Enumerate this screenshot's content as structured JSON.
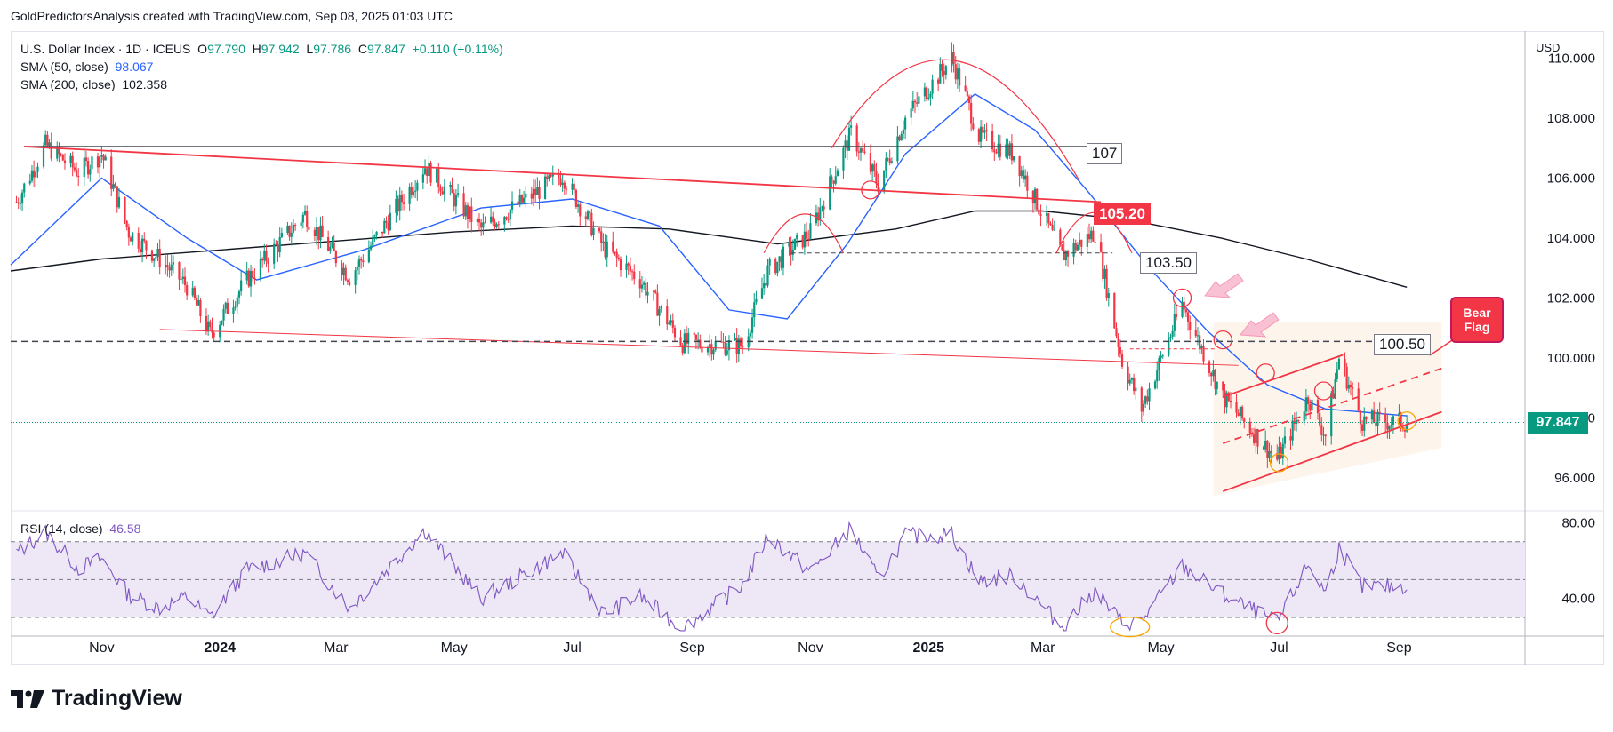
{
  "header": {
    "attribution": "GoldPredictorsAnalysis created with TradingView.com, Sep 08, 2025 01:03 UTC"
  },
  "legend": {
    "symbol": "U.S. Dollar Index · 1D · ICEUS",
    "open_label": "O",
    "open": "97.790",
    "high_label": "H",
    "high": "97.942",
    "low_label": "L",
    "low": "97.786",
    "close_label": "C",
    "close": "97.847",
    "change": "+0.110 (+0.11%)",
    "sma50_label": "SMA (50, close)",
    "sma50_value": "98.067",
    "sma200_label": "SMA (200, close)",
    "sma200_value": "102.358"
  },
  "rsi_legend": {
    "label": "RSI (14, close)",
    "value": "46.58"
  },
  "currency": "USD",
  "logo_text": "TradingView",
  "annotations": {
    "level_107": "107",
    "level_105": "105.20",
    "level_103": "103.50",
    "level_100": "100.50",
    "bear_flag_line1": "Bear",
    "bear_flag_line2": "Flag"
  },
  "colors": {
    "up": "#089981",
    "down": "#f23645",
    "sma50": "#2962ff",
    "sma200": "#131722",
    "rsi": "#7e57c2",
    "rsi_band": "#ede7f6",
    "annotation": "#f23645"
  },
  "chart_data": {
    "type": "candlestick",
    "title": "U.S. Dollar Index · 1D · ICEUS",
    "price_axis": {
      "ticks": [
        "96.000",
        "98.000",
        "100.000",
        "102.000",
        "104.000",
        "106.000",
        "108.000",
        "110.000"
      ],
      "range": [
        94.9,
        110.9
      ],
      "current_price": "97.847"
    },
    "rsi_axis": {
      "ticks": [
        "40.00",
        "80.00"
      ],
      "range": [
        22,
        84
      ],
      "band": [
        30,
        70
      ]
    },
    "time_axis": {
      "range": [
        "2023-09-15",
        "2025-11-05"
      ],
      "labels": [
        {
          "label": "Nov",
          "date": "2023-11-01"
        },
        {
          "label": "2024",
          "date": "2024-01-01"
        },
        {
          "label": "Mar",
          "date": "2024-03-01"
        },
        {
          "label": "May",
          "date": "2024-05-01"
        },
        {
          "label": "Jul",
          "date": "2024-07-01"
        },
        {
          "label": "Sep",
          "date": "2024-09-01"
        },
        {
          "label": "Nov",
          "date": "2024-11-01"
        },
        {
          "label": "2025",
          "date": "2025-01-01"
        },
        {
          "label": "Mar",
          "date": "2025-03-01"
        },
        {
          "label": "May",
          "date": "2025-05-01"
        },
        {
          "label": "Jul",
          "date": "2025-07-01"
        },
        {
          "label": "Sep",
          "date": "2025-09-01"
        }
      ]
    },
    "close_path": [
      [
        "2023-09-18",
        105.2
      ],
      [
        "2023-10-03",
        107.1
      ],
      [
        "2023-10-20",
        106.2
      ],
      [
        "2023-11-01",
        106.8
      ],
      [
        "2023-11-15",
        104.2
      ],
      [
        "2023-12-01",
        103.3
      ],
      [
        "2023-12-15",
        102.4
      ],
      [
        "2023-12-27",
        100.8
      ],
      [
        "2024-01-15",
        102.6
      ],
      [
        "2024-02-14",
        104.8
      ],
      [
        "2024-03-08",
        102.7
      ],
      [
        "2024-04-16",
        106.4
      ],
      [
        "2024-05-15",
        104.3
      ],
      [
        "2024-06-26",
        106.1
      ],
      [
        "2024-07-17",
        103.7
      ],
      [
        "2024-08-05",
        102.6
      ],
      [
        "2024-08-27",
        100.5
      ],
      [
        "2024-09-27",
        100.4
      ],
      [
        "2024-10-10",
        102.9
      ],
      [
        "2024-11-01",
        104.2
      ],
      [
        "2024-11-22",
        107.5
      ],
      [
        "2024-12-06",
        105.8
      ],
      [
        "2024-12-20",
        108.0
      ],
      [
        "2025-01-13",
        110.0
      ],
      [
        "2025-01-27",
        107.4
      ],
      [
        "2025-02-14",
        106.8
      ],
      [
        "2025-03-11",
        103.4
      ],
      [
        "2025-03-28",
        104.2
      ],
      [
        "2025-04-11",
        99.9
      ],
      [
        "2025-04-21",
        98.3
      ],
      [
        "2025-05-12",
        101.8
      ],
      [
        "2025-06-02",
        98.7
      ],
      [
        "2025-06-30",
        96.6
      ],
      [
        "2025-07-16",
        98.7
      ],
      [
        "2025-07-25",
        97.4
      ],
      [
        "2025-08-01",
        100.0
      ],
      [
        "2025-08-13",
        97.9
      ],
      [
        "2025-09-05",
        97.85
      ]
    ],
    "sma50_path": [
      [
        "2023-09-15",
        103.1
      ],
      [
        "2023-11-01",
        106.0
      ],
      [
        "2023-12-15",
        104.0
      ],
      [
        "2024-01-20",
        102.6
      ],
      [
        "2024-03-15",
        103.6
      ],
      [
        "2024-05-15",
        105.0
      ],
      [
        "2024-07-01",
        105.3
      ],
      [
        "2024-08-15",
        104.4
      ],
      [
        "2024-09-20",
        101.6
      ],
      [
        "2024-10-20",
        101.3
      ],
      [
        "2024-11-20",
        103.8
      ],
      [
        "2024-12-20",
        106.8
      ],
      [
        "2025-01-25",
        108.8
      ],
      [
        "2025-02-25",
        107.6
      ],
      [
        "2025-03-25",
        105.5
      ],
      [
        "2025-04-25",
        103.0
      ],
      [
        "2025-05-25",
        100.9
      ],
      [
        "2025-06-25",
        99.1
      ],
      [
        "2025-07-25",
        98.3
      ],
      [
        "2025-09-05",
        98.067
      ]
    ],
    "sma200_path": [
      [
        "2023-09-15",
        102.9
      ],
      [
        "2023-11-01",
        103.3
      ],
      [
        "2024-01-01",
        103.6
      ],
      [
        "2024-03-01",
        103.9
      ],
      [
        "2024-05-01",
        104.2
      ],
      [
        "2024-07-01",
        104.4
      ],
      [
        "2024-08-20",
        104.3
      ],
      [
        "2024-10-15",
        103.8
      ],
      [
        "2024-12-15",
        104.3
      ],
      [
        "2025-01-25",
        104.9
      ],
      [
        "2025-03-01",
        104.9
      ],
      [
        "2025-04-15",
        104.6
      ],
      [
        "2025-06-01",
        104.0
      ],
      [
        "2025-07-15",
        103.3
      ],
      [
        "2025-09-05",
        102.358
      ]
    ],
    "rsi_path": [
      [
        "2023-09-18",
        64
      ],
      [
        "2023-10-03",
        75
      ],
      [
        "2023-10-20",
        56
      ],
      [
        "2023-11-01",
        61
      ],
      [
        "2023-11-15",
        42
      ],
      [
        "2023-12-01",
        35
      ],
      [
        "2023-12-15",
        41
      ],
      [
        "2023-12-27",
        30
      ],
      [
        "2024-01-15",
        55
      ],
      [
        "2024-02-14",
        64
      ],
      [
        "2024-03-08",
        35
      ],
      [
        "2024-04-16",
        76
      ],
      [
        "2024-05-15",
        40
      ],
      [
        "2024-06-26",
        64
      ],
      [
        "2024-07-17",
        32
      ],
      [
        "2024-08-05",
        41
      ],
      [
        "2024-08-27",
        24
      ],
      [
        "2024-09-27",
        47
      ],
      [
        "2024-10-10",
        73
      ],
      [
        "2024-11-01",
        54
      ],
      [
        "2024-11-22",
        77
      ],
      [
        "2024-12-06",
        50
      ],
      [
        "2024-12-20",
        73
      ],
      [
        "2025-01-13",
        74
      ],
      [
        "2025-01-27",
        49
      ],
      [
        "2025-02-14",
        52
      ],
      [
        "2025-03-11",
        25
      ],
      [
        "2025-03-28",
        44
      ],
      [
        "2025-04-11",
        27
      ],
      [
        "2025-04-21",
        28
      ],
      [
        "2025-05-12",
        57
      ],
      [
        "2025-06-02",
        42
      ],
      [
        "2025-06-30",
        27
      ],
      [
        "2025-07-16",
        58
      ],
      [
        "2025-07-25",
        43
      ],
      [
        "2025-08-01",
        67
      ],
      [
        "2025-08-13",
        46
      ],
      [
        "2025-09-05",
        46.58
      ]
    ],
    "horizontal_levels": [
      107,
      103.5,
      100.5
    ],
    "legend_placement": "top-left"
  }
}
